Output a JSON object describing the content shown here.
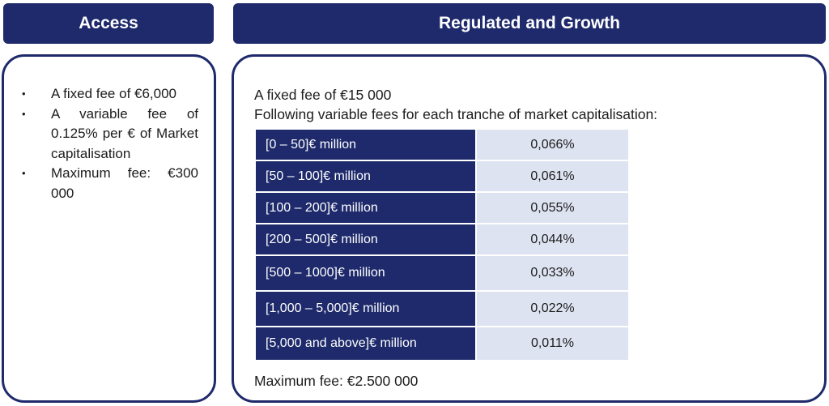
{
  "access": {
    "title": "Access",
    "bullets": [
      "A fixed fee of €6,000",
      "A variable fee of 0.125% per € of Market capitalisation",
      "Maximum fee: €300 000"
    ],
    "bullet_glyph": "•"
  },
  "regulated": {
    "title": "Regulated and Growth",
    "fixed_fee": "A fixed fee of €15 000",
    "variable_intro": "Following variable fees for each tranche of market capitalisation:",
    "tranches": [
      {
        "range": "[0 – 50]€ million",
        "rate": "0,066%"
      },
      {
        "range": "[50 – 100]€ million",
        "rate": "0,061%"
      },
      {
        "range": "[100 – 200]€ million",
        "rate": "0,055%"
      },
      {
        "range": "[200 – 500]€ million",
        "rate": "0,044%"
      },
      {
        "range": "[500 – 1000]€ million",
        "rate": "0,033%"
      },
      {
        "range": "[1,000 – 5,000]€ million",
        "rate": "0,022%"
      },
      {
        "range": "[5,000 and above]€ million",
        "rate": "0,011%"
      }
    ],
    "maximum_fee": "Maximum fee: €2.500 000"
  },
  "colors": {
    "navy": "#1e2a6b",
    "light_cell": "#dde3f0"
  }
}
